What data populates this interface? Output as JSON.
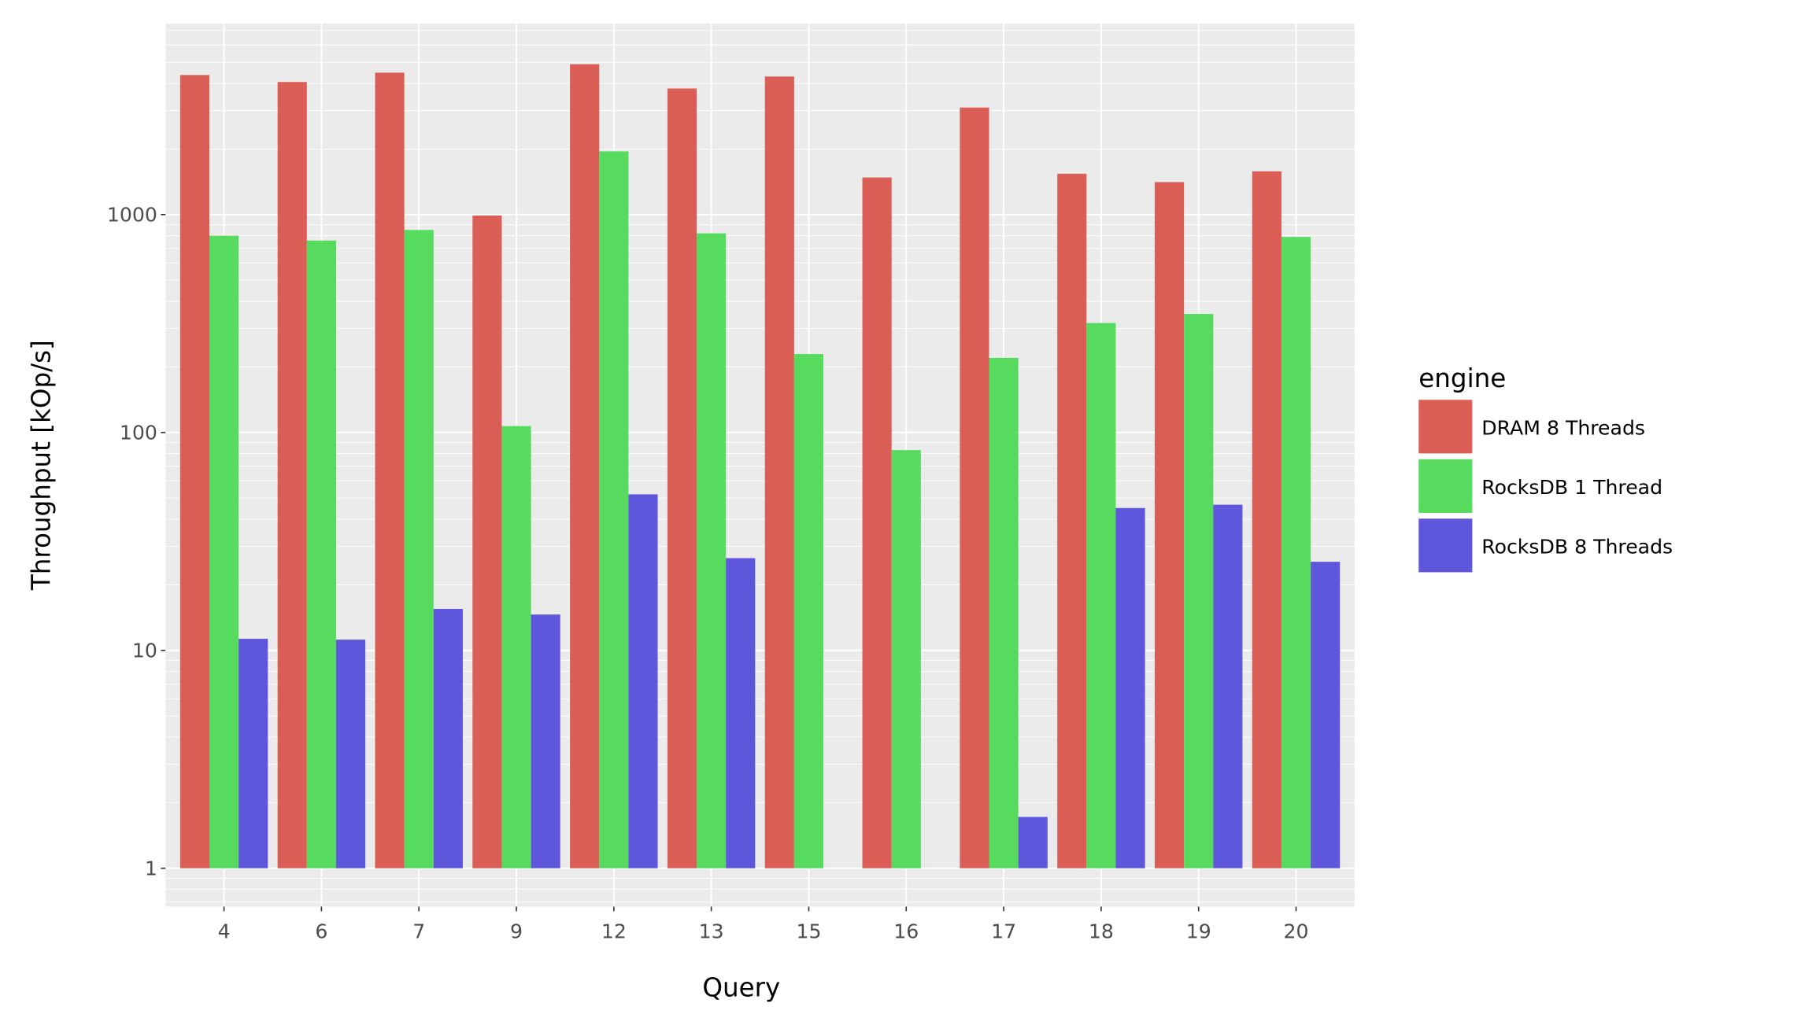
{
  "chart_data": {
    "type": "bar",
    "title": "",
    "xlabel": "Query",
    "ylabel": "Throughput [kOp/s]",
    "yscale": "log10",
    "ylim": [
      0.667,
      7530
    ],
    "yticks": [
      1,
      10,
      100,
      1000
    ],
    "ytick_labels": [
      "1",
      "10",
      "100",
      "1000"
    ],
    "grid": true,
    "categories": [
      "4",
      "6",
      "7",
      "9",
      "12",
      "13",
      "15",
      "16",
      "17",
      "18",
      "19",
      "20"
    ],
    "legend": {
      "title": "engine",
      "placement": "right"
    },
    "series": [
      {
        "name": "DRAM 8 Threads",
        "color": "#DB5E56",
        "values": [
          4370,
          4060,
          4480,
          990,
          4900,
          3790,
          4300,
          1480,
          3100,
          1540,
          1410,
          1580
        ]
      },
      {
        "name": "RocksDB 1 Thread",
        "color": "#56DB5E",
        "values": [
          800,
          760,
          850,
          107,
          1950,
          820,
          229,
          83,
          220,
          318,
          350,
          790
        ]
      },
      {
        "name": "RocksDB 8 Threads",
        "color": "#5E56DB",
        "values": [
          11.3,
          11.2,
          15.5,
          14.6,
          52,
          26.5,
          null,
          null,
          1.72,
          45,
          46.6,
          25.5
        ]
      }
    ]
  }
}
